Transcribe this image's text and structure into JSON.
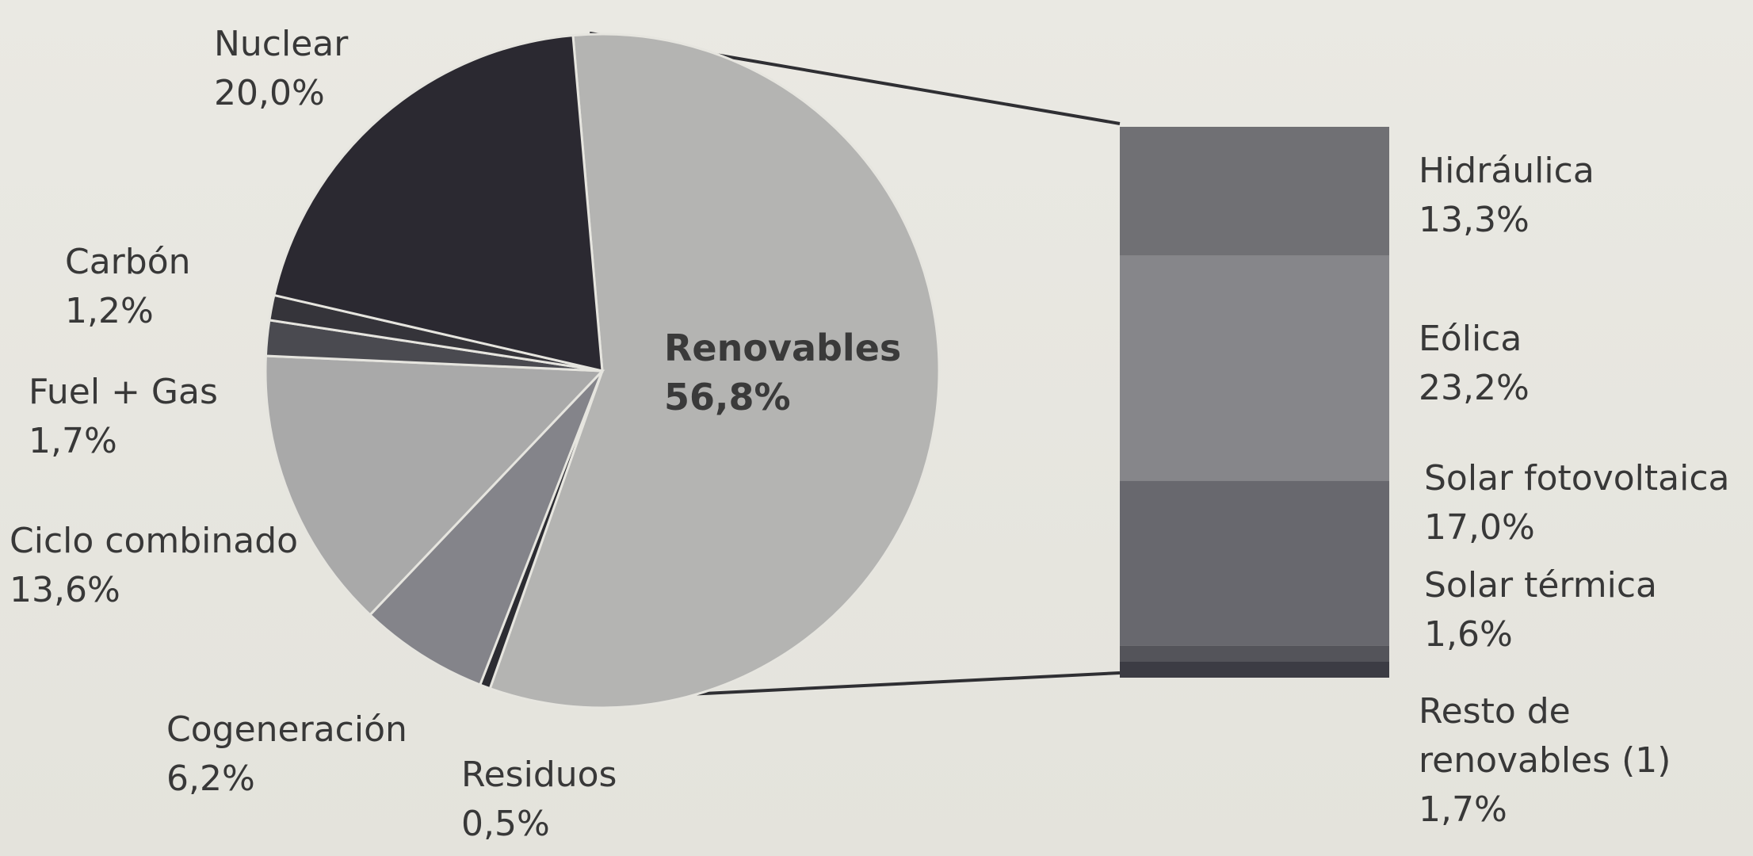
{
  "chart_data": {
    "type": "pie",
    "slices": [
      {
        "label": "Renovables",
        "value_text": "56,8%",
        "value": 56.8,
        "color": "#b4b4b2"
      },
      {
        "label": "Residuos",
        "value_text": "0,5%",
        "value": 0.5,
        "color": "#2c2c32"
      },
      {
        "label": "Cogeneración",
        "value_text": "6,2%",
        "value": 6.2,
        "color": "#84848a"
      },
      {
        "label": "Ciclo combinado",
        "value_text": "13,6%",
        "value": 13.6,
        "color": "#a9a9a9"
      },
      {
        "label": "Fuel + Gas",
        "value_text": "1,7%",
        "value": 1.7,
        "color": "#4a4a50"
      },
      {
        "label": "Carbón",
        "value_text": "1,2%",
        "value": 1.2,
        "color": "#35343a"
      },
      {
        "label": "Nuclear",
        "value_text": "20,0%",
        "value": 20.0,
        "color": "#2b2931"
      }
    ],
    "breakdown": {
      "of": "Renovables",
      "type": "stacked-bar",
      "segments": [
        {
          "label": "Hidráulica",
          "value_text": "13,3%",
          "value": 13.3,
          "color": "#707074"
        },
        {
          "label": "Eólica",
          "value_text": "23,2%",
          "value": 23.2,
          "color": "#86868a"
        },
        {
          "label": "Solar fotovoltaica",
          "value_text": "17,0%",
          "value": 17.0,
          "color": "#68686e"
        },
        {
          "label": "Solar térmica",
          "value_text": "1,6%",
          "value": 1.6,
          "color": "#54545a"
        },
        {
          "label": "Resto de renovables (1)",
          "value_text": "1,7%",
          "value": 1.7,
          "color": "#3c3c44"
        }
      ]
    }
  }
}
